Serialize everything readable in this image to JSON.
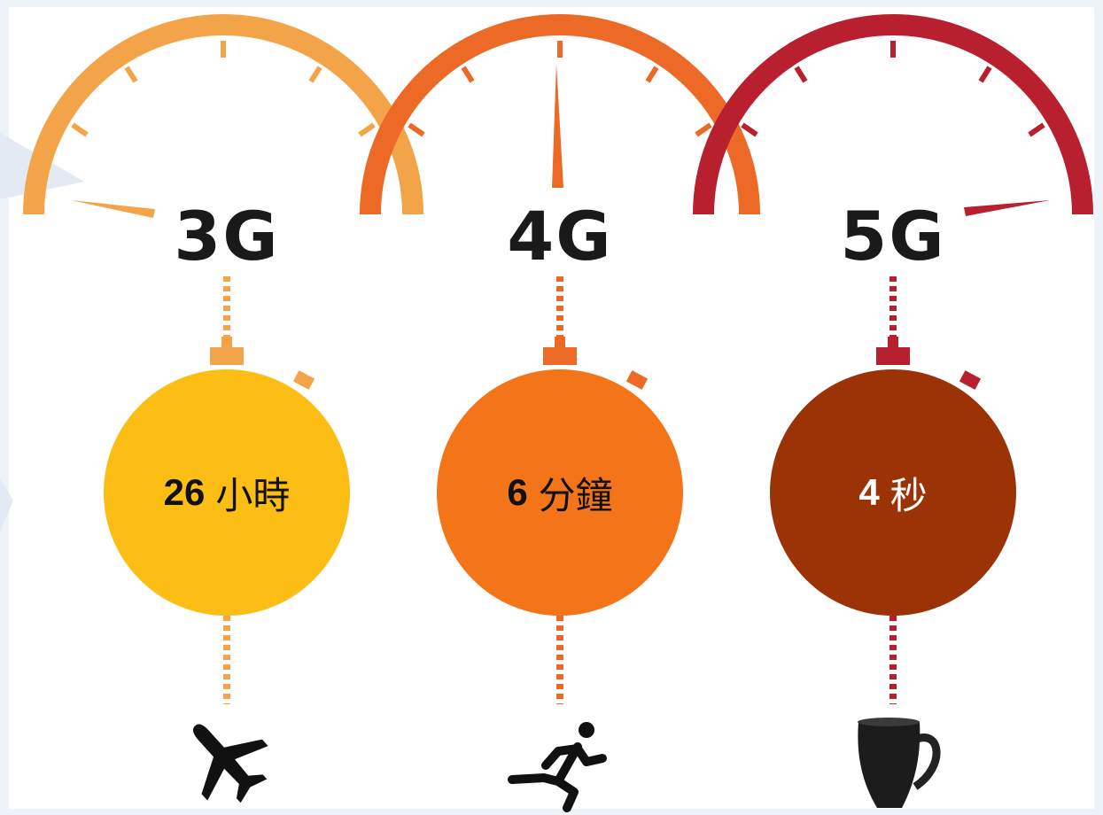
{
  "generations": [
    {
      "label": "3G",
      "value": "26",
      "unit": "小時",
      "color": "#f4a448",
      "circle_color": "#fcbd14",
      "text_color": "#111111",
      "icon": "airplane-icon"
    },
    {
      "label": "4G",
      "value": "6",
      "unit": "分鐘",
      "color": "#ec6a25",
      "circle_color": "#f47419",
      "text_color": "#111111",
      "icon": "running-person-icon"
    },
    {
      "label": "5G",
      "value": "4",
      "unit": "秒",
      "color": "#b8202f",
      "circle_color": "#9c3306",
      "text_color": "#ffffff",
      "icon": "coffee-mug-icon"
    }
  ]
}
